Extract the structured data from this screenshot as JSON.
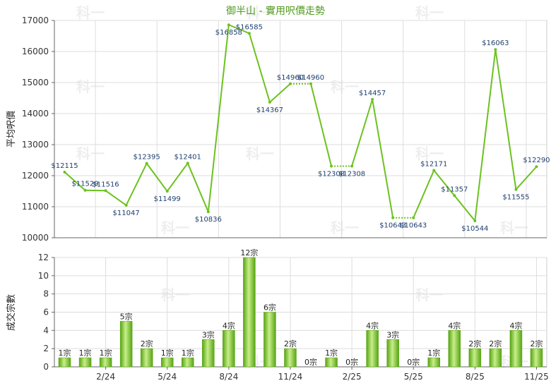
{
  "chart_data": [
    {
      "type": "line",
      "title": "御半山 - 實用呎價走勢",
      "ylabel": "平均呎價",
      "ylim": [
        10000,
        17000
      ],
      "yticks": [
        10000,
        11000,
        12000,
        13000,
        14000,
        15000,
        16000,
        17000
      ],
      "series": [
        {
          "values": [
            12115,
            11529,
            11516,
            11047,
            12395,
            11499,
            12401,
            10836,
            16858,
            16585,
            14367,
            14960,
            14960,
            12308,
            12308,
            14457,
            10643,
            10643,
            12171,
            11357,
            10544,
            16063,
            11555,
            12290
          ],
          "labels": [
            "$12115",
            "$11529",
            "$11516",
            "$11047",
            "$12395",
            "$11499",
            "$12401",
            "$10836",
            "$16858",
            "$16585",
            "$14367",
            "$14960",
            "$14960",
            "$12308",
            "$12308",
            "$14457",
            "$10643",
            "$10643",
            "$12171",
            "$11357",
            "$10544",
            "$16063",
            "$11555",
            "$12290"
          ]
        }
      ]
    },
    {
      "type": "bar",
      "ylabel": "成交宗數",
      "ylim": [
        0,
        12
      ],
      "yticks": [
        0,
        2,
        4,
        6,
        8,
        10,
        12
      ],
      "xticks": [
        {
          "index": 2,
          "label": "2/24"
        },
        {
          "index": 5,
          "label": "5/24"
        },
        {
          "index": 8,
          "label": "8/24"
        },
        {
          "index": 11,
          "label": "11/24"
        },
        {
          "index": 14,
          "label": "2/25"
        },
        {
          "index": 17,
          "label": "5/25"
        },
        {
          "index": 20,
          "label": "8/25"
        },
        {
          "index": 23,
          "label": "11/25"
        }
      ],
      "values": [
        1,
        1,
        1,
        5,
        2,
        1,
        1,
        3,
        4,
        12,
        6,
        2,
        0,
        1,
        0,
        4,
        3,
        0,
        1,
        4,
        2,
        2,
        4,
        2
      ],
      "labels": [
        "1宗",
        "1宗",
        "1宗",
        "5宗",
        "2宗",
        "1宗",
        "1宗",
        "3宗",
        "4宗",
        "12宗",
        "6宗",
        "2宗",
        "0宗",
        "1宗",
        "0宗",
        "4宗",
        "3宗",
        "0宗",
        "1宗",
        "4宗",
        "2宗",
        "2宗",
        "4宗",
        "2宗"
      ]
    }
  ],
  "watermark": "科一",
  "colors": {
    "line": "#6cc21f",
    "bar_light": "#c8ee8a",
    "bar_dark": "#56a412",
    "grid": "#dddddd"
  }
}
